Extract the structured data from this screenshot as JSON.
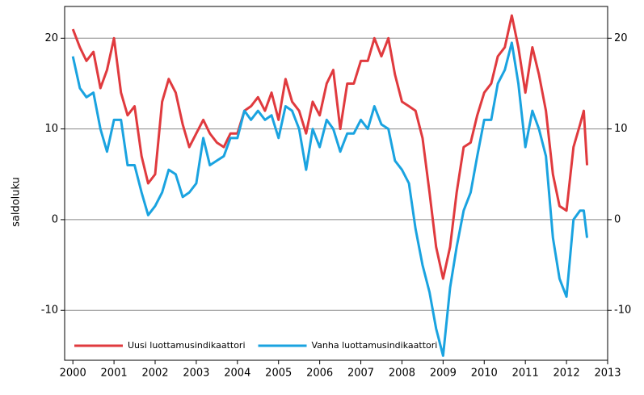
{
  "chart_data": {
    "type": "line",
    "y_label": "saldoluku",
    "x": [
      2000.0,
      2000.17,
      2000.33,
      2000.5,
      2000.67,
      2000.83,
      2001.0,
      2001.17,
      2001.33,
      2001.5,
      2001.67,
      2001.83,
      2002.0,
      2002.17,
      2002.33,
      2002.5,
      2002.67,
      2002.83,
      2003.0,
      2003.17,
      2003.33,
      2003.5,
      2003.67,
      2003.83,
      2004.0,
      2004.17,
      2004.33,
      2004.5,
      2004.67,
      2004.83,
      2005.0,
      2005.17,
      2005.33,
      2005.5,
      2005.67,
      2005.83,
      2006.0,
      2006.17,
      2006.33,
      2006.5,
      2006.67,
      2006.83,
      2007.0,
      2007.17,
      2007.33,
      2007.5,
      2007.67,
      2007.83,
      2008.0,
      2008.17,
      2008.33,
      2008.5,
      2008.67,
      2008.83,
      2009.0,
      2009.17,
      2009.33,
      2009.5,
      2009.67,
      2009.83,
      2010.0,
      2010.17,
      2010.33,
      2010.5,
      2010.67,
      2010.83,
      2011.0,
      2011.17,
      2011.33,
      2011.5,
      2011.67,
      2011.83,
      2012.0,
      2012.17,
      2012.33,
      2012.42,
      2012.5
    ],
    "series": [
      {
        "name": "Uusi luottamusindikaattori",
        "color": "#e03a3e",
        "values": [
          21,
          19,
          17.5,
          18.5,
          14.5,
          16.5,
          20,
          14,
          11.5,
          12.5,
          7,
          4,
          5,
          13,
          15.5,
          14,
          10.5,
          8,
          9.5,
          11,
          9.5,
          8.5,
          8,
          9.5,
          9.5,
          12,
          12.5,
          13.5,
          12,
          14,
          11,
          15.5,
          13,
          12,
          9.5,
          13,
          11.5,
          15,
          16.5,
          10,
          15,
          15,
          17.5,
          17.5,
          20,
          18,
          20,
          16,
          13,
          12.5,
          12,
          9,
          3,
          -3,
          -6.5,
          -3,
          3,
          8,
          8.5,
          11.5,
          14,
          15,
          18,
          19,
          22.5,
          19,
          14,
          19,
          16,
          12,
          5,
          1.5,
          1,
          8,
          10.5,
          12,
          6
        ]
      },
      {
        "name": "Vanha luottamusindikaattori",
        "color": "#1aa3e0",
        "values": [
          18,
          14.5,
          13.5,
          14,
          10,
          7.5,
          11,
          11,
          6,
          6,
          3,
          0.5,
          1.5,
          3,
          5.5,
          5,
          2.5,
          3,
          4,
          9,
          6,
          6.5,
          7,
          9,
          9,
          12,
          11,
          12,
          11,
          11.5,
          9,
          12.5,
          12,
          10,
          5.5,
          10,
          8,
          11,
          10,
          7.5,
          9.5,
          9.5,
          11,
          10,
          12.5,
          10.5,
          10,
          6.5,
          5.5,
          4,
          -1,
          -5,
          -8,
          -12,
          -15,
          -7.5,
          -3,
          1,
          3,
          7,
          11,
          11,
          15,
          16.5,
          19.5,
          15,
          8,
          12,
          10,
          7,
          -2,
          -6.5,
          -8.5,
          0,
          1,
          1,
          -2
        ]
      }
    ],
    "xlim": [
      1999.8,
      2013
    ],
    "xticks": [
      2000,
      2001,
      2002,
      2003,
      2004,
      2005,
      2006,
      2007,
      2008,
      2009,
      2010,
      2011,
      2012,
      2013
    ],
    "ylim": [
      -15.5,
      23.5
    ],
    "yticks": [
      -10,
      0,
      10,
      20
    ],
    "y2lim": [
      -15.5,
      23.5
    ],
    "y2ticks": [
      -10,
      0,
      10,
      20
    ],
    "grid": true,
    "legend": "lower left"
  }
}
